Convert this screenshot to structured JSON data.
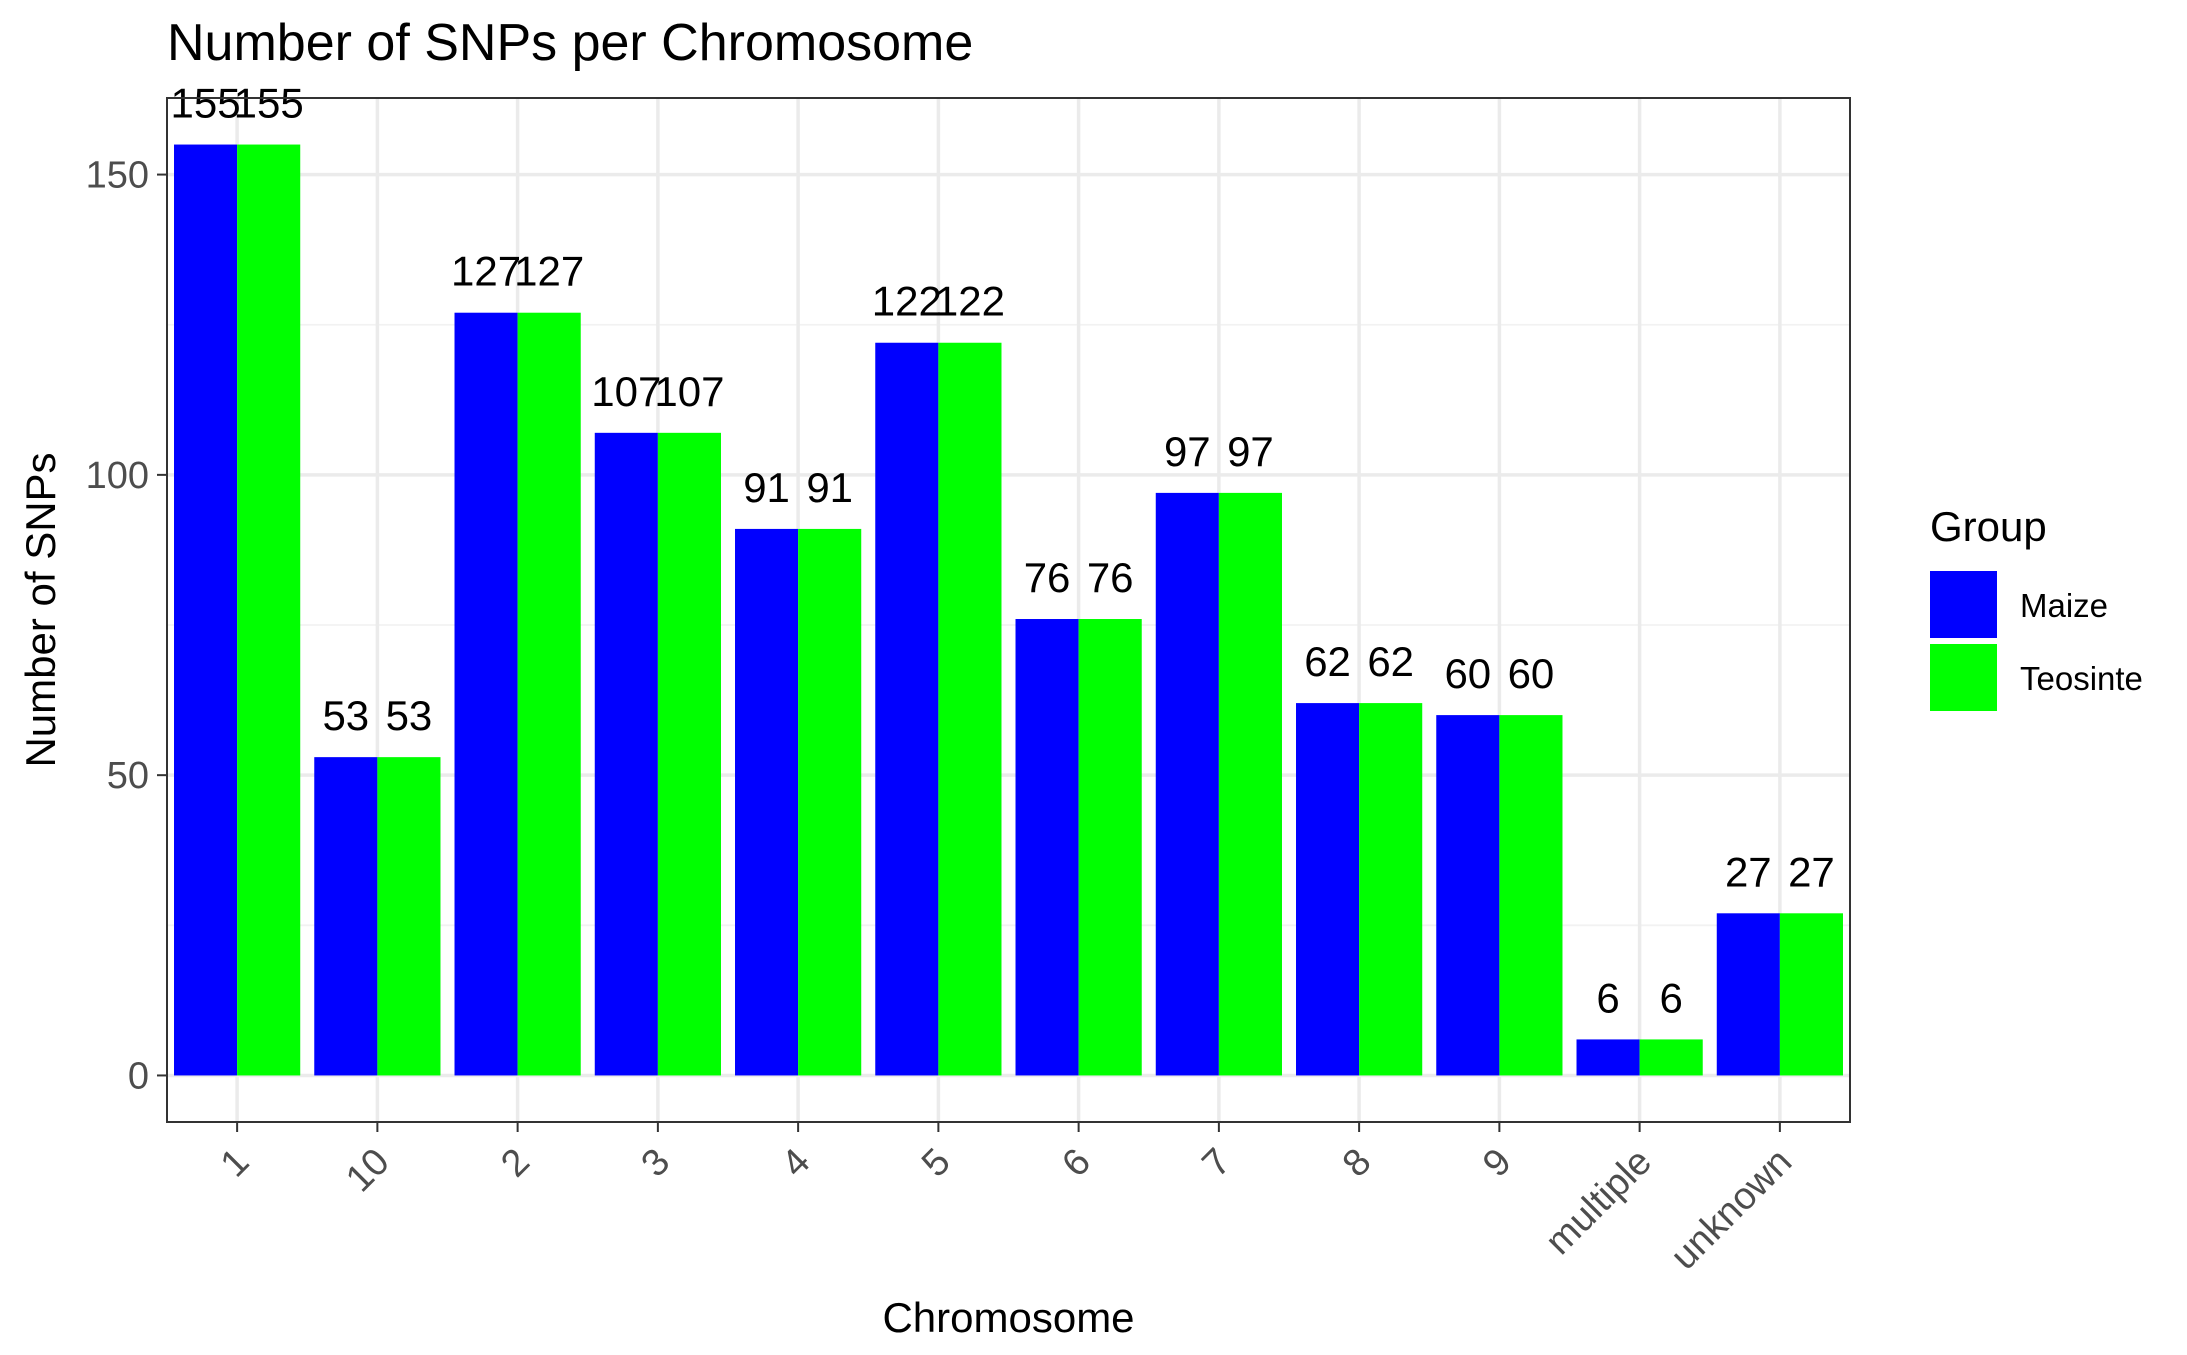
{
  "chart_data": {
    "type": "bar",
    "title": "Number of SNPs per Chromosome",
    "xlabel": "Chromosome",
    "ylabel": "Number of SNPs",
    "categories": [
      "1",
      "10",
      "2",
      "3",
      "4",
      "5",
      "6",
      "7",
      "8",
      "9",
      "multiple",
      "unknown"
    ],
    "series": [
      {
        "name": "Maize",
        "color": "#0000ff",
        "values": [
          155,
          53,
          127,
          107,
          91,
          122,
          76,
          97,
          62,
          60,
          6,
          27
        ]
      },
      {
        "name": "Teosinte",
        "color": "#00ff00",
        "values": [
          155,
          53,
          127,
          107,
          91,
          122,
          76,
          97,
          62,
          60,
          6,
          27
        ]
      }
    ],
    "ylim": [
      -7.75,
      162.75
    ],
    "y_ticks": [
      0,
      50,
      100,
      150
    ],
    "grid": true,
    "data_labels": true,
    "legend": {
      "title": "Group",
      "position": "right"
    },
    "x_tick_rotation": 45
  }
}
